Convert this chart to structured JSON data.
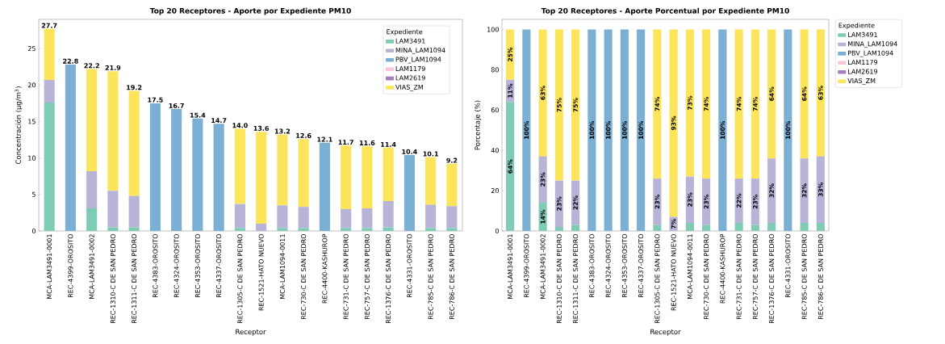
{
  "chart_data": [
    {
      "type": "bar",
      "stacked": true,
      "title": "Top 20 Receptores - Aporte por Expediente PM10",
      "xlabel": "Receptor",
      "ylabel": "Concentración (µg/m$^{3}$)",
      "legend": "top right",
      "legend_title": "Expediente",
      "categories": [
        "MCA-LAM3491-0001",
        "REC-4399-OROSITO",
        "MCA-LAM3491-0002",
        "REC-1310-C DE SAN PEDRO",
        "REC-1311-C DE SAN PEDRO",
        "REC-4383-OROSITO",
        "REC-4324-OROSITO",
        "REC-4353-OROSITO",
        "REC-4337-OROSITO",
        "REC-1305-C DE SAN PEDRO",
        "REC-1521-HATO NUEVO",
        "MCA-LAM1094-0011",
        "REC-730-C DE SAN PEDRO",
        "REC-4400-KASHUROP",
        "REC-731-C DE SAN PEDRO",
        "REC-757-C DE SAN PEDRO",
        "REC-1376-C DE SAN PEDRO",
        "REC-4331-OROSITO",
        "REC-785-C DE SAN PEDRO",
        "REC-786-C DE SAN PEDRO"
      ],
      "series": [
        {
          "name": "LAM3491",
          "color": "#80cbb5",
          "values": [
            17.6,
            0,
            3.1,
            0.5,
            0.5,
            0,
            0,
            0,
            0,
            0.4,
            0,
            0.4,
            0.4,
            0,
            0.4,
            0.4,
            0.5,
            0,
            0.4,
            0.4
          ]
        },
        {
          "name": "MINA_LAM1094",
          "color": "#b8b4d8",
          "values": [
            3.1,
            0,
            5.1,
            5.0,
            4.3,
            0,
            0,
            0,
            0,
            3.3,
            1.0,
            3.1,
            2.9,
            0,
            2.6,
            2.7,
            3.6,
            0,
            3.2,
            3.0
          ]
        },
        {
          "name": "PBV_LAM1094",
          "color": "#7bafd3",
          "values": [
            0,
            22.8,
            0,
            0,
            0,
            17.5,
            16.7,
            15.4,
            14.7,
            0,
            0,
            0,
            0,
            12.1,
            0,
            0,
            0,
            10.4,
            0,
            0
          ]
        },
        {
          "name": "LAM1179",
          "color": "#f9c4dc",
          "values": [
            0,
            0,
            0,
            0,
            0,
            0,
            0,
            0,
            0,
            0,
            0,
            0,
            0,
            0,
            0,
            0,
            0,
            0,
            0,
            0
          ]
        },
        {
          "name": "LAM2619",
          "color": "#a77bbd",
          "values": [
            0,
            0,
            0,
            0,
            0,
            0,
            0,
            0,
            0,
            0,
            0,
            0,
            0,
            0,
            0,
            0,
            0,
            0,
            0,
            0
          ]
        },
        {
          "name": "VIAS_ZM",
          "color": "#fce55b",
          "values": [
            7.0,
            0,
            14.0,
            16.4,
            14.4,
            0,
            0,
            0,
            0,
            10.3,
            12.6,
            9.7,
            9.3,
            0,
            8.7,
            8.5,
            7.3,
            0,
            6.5,
            5.8
          ]
        }
      ],
      "totals": [
        "27.7",
        "22.8",
        "22.2",
        "21.9",
        "19.2",
        "17.5",
        "16.7",
        "15.4",
        "14.7",
        "14.0",
        "13.6",
        "13.2",
        "12.6",
        "12.1",
        "11.7",
        "11.6",
        "11.4",
        "10.4",
        "10.1",
        "9.2"
      ],
      "ylim": [
        0,
        29
      ],
      "yticks": [
        0,
        5,
        10,
        15,
        20,
        25
      ]
    },
    {
      "type": "bar",
      "stacked": true,
      "title": "Top 20 Receptores - Aporte Porcentual por Expediente PM10",
      "xlabel": "Receptor",
      "ylabel": "Porcentaje (%)",
      "legend": "right",
      "legend_title": "Expediente",
      "categories": [
        "MCA-LAM3491-0001",
        "REC-4399-OROSITO",
        "MCA-LAM3491-0002",
        "REC-1310-C DE SAN PEDRO",
        "REC-1311-C DE SAN PEDRO",
        "REC-4383-OROSITO",
        "REC-4324-OROSITO",
        "REC-4353-OROSITO",
        "REC-4337-OROSITO",
        "REC-1305-C DE SAN PEDRO",
        "REC-1521-HATO NUEVO",
        "MCA-LAM1094-0011",
        "REC-730-C DE SAN PEDRO",
        "REC-4400-KASHUROP",
        "REC-731-C DE SAN PEDRO",
        "REC-757-C DE SAN PEDRO",
        "REC-1376-C DE SAN PEDRO",
        "REC-4331-OROSITO",
        "REC-785-C DE SAN PEDRO",
        "REC-786-C DE SAN PEDRO"
      ],
      "series": [
        {
          "name": "LAM3491",
          "color": "#80cbb5",
          "values": [
            64,
            0,
            14,
            2,
            3,
            0,
            0,
            0,
            0,
            3,
            0,
            4,
            3,
            0,
            4,
            3,
            4,
            0,
            4,
            4
          ],
          "value_labels": [
            "64%",
            null,
            "14%",
            null,
            null,
            null,
            null,
            null,
            null,
            null,
            null,
            null,
            null,
            null,
            null,
            null,
            null,
            null,
            null,
            null
          ]
        },
        {
          "name": "MINA_LAM1094",
          "color": "#b8b4d8",
          "values": [
            11,
            0,
            23,
            23,
            22,
            0,
            0,
            0,
            0,
            23,
            7,
            23,
            23,
            0,
            22,
            23,
            32,
            0,
            32,
            33
          ],
          "value_labels": [
            "11%",
            null,
            "23%",
            "23%",
            "22%",
            null,
            null,
            null,
            null,
            "23%",
            "7%",
            "23%",
            "23%",
            null,
            "22%",
            "23%",
            "32%",
            null,
            "32%",
            "33%"
          ]
        },
        {
          "name": "PBV_LAM1094",
          "color": "#7bafd3",
          "values": [
            0,
            100,
            0,
            0,
            0,
            100,
            100,
            100,
            100,
            0,
            0,
            0,
            0,
            100,
            0,
            0,
            0,
            100,
            0,
            0
          ],
          "value_labels": [
            null,
            "100%",
            null,
            null,
            null,
            "100%",
            "100%",
            "100%",
            "100%",
            null,
            null,
            null,
            null,
            "100%",
            null,
            null,
            null,
            "100%",
            null,
            null
          ]
        },
        {
          "name": "LAM1179",
          "color": "#f9c4dc",
          "values": [
            0,
            0,
            0,
            0,
            0,
            0,
            0,
            0,
            0,
            0,
            0,
            0,
            0,
            0,
            0,
            0,
            0,
            0,
            0,
            0
          ]
        },
        {
          "name": "LAM2619",
          "color": "#a77bbd",
          "values": [
            0,
            0,
            0,
            0,
            0,
            0,
            0,
            0,
            0,
            0,
            0,
            0,
            0,
            0,
            0,
            0,
            0,
            0,
            0,
            0
          ]
        },
        {
          "name": "VIAS_ZM",
          "color": "#fce55b",
          "values": [
            25,
            0,
            63,
            75,
            75,
            0,
            0,
            0,
            0,
            74,
            93,
            73,
            74,
            0,
            74,
            74,
            64,
            0,
            64,
            63
          ],
          "value_labels": [
            "25%",
            null,
            "63%",
            "75%",
            "75%",
            null,
            null,
            null,
            null,
            "74%",
            "93%",
            "73%",
            "74%",
            null,
            "74%",
            "74%",
            "64%",
            null,
            "64%",
            "63%"
          ]
        }
      ],
      "ylim": [
        0,
        105
      ],
      "yticks": [
        0,
        20,
        40,
        60,
        80,
        100
      ]
    }
  ]
}
